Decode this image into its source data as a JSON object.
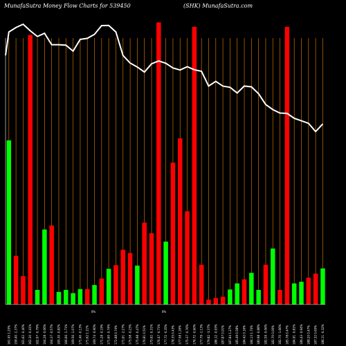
{
  "header": {
    "left": "MunafaSutra  Money Flow  Charts for 539450",
    "right": "(SHK)  MunafaSutra.com"
  },
  "colors": {
    "background": "#000000",
    "up": "#00ff00",
    "down": "#ff0000",
    "guide": "#d07000",
    "price_line": "#ffffff"
  },
  "chart_data": {
    "type": "bar",
    "note_labels": [
      "0%",
      "0%"
    ],
    "categories": [
      "161.45 1.25%",
      "159.40 -1.37%",
      "161.62 -0.40%",
      "162.30 -0.41%",
      "162.97 -0.79%",
      "164.28 -0.06%",
      "164.37 -0.57%",
      "165.30 -0.82%",
      "166.66 -1.71%",
      "169.56 -1.07%",
      "171.40 -0.13%",
      "171.62 1.11%",
      "169.74 -0.90%",
      "171.28 -0.19%",
      "171.60 -0.74%",
      "172.88 0.74%",
      "171.61 -2.27%",
      "175.58 -0.23%",
      "175.98 -0.47%",
      "176.81 0.51%",
      "175.92 -0.31%",
      "176.47 -0.71%",
      "177.72 -0.35%",
      "178.35 0.43%",
      "177.58 1.26%",
      "175.37 -0.76%",
      "176.72 -0.60%",
      "177.79 -1.13%",
      "179.82 -3.37%",
      "186.12 -0.93%",
      "187.87 0.01%",
      "187.84 1.27%",
      "185.49 0.58%",
      "184.42 0.16%",
      "184.13 1.74%",
      "180.98 -0.88%",
      "182.59 -0.06%",
      "182.70 0.00%",
      "182.70 -1.66%",
      "185.78 0.47%",
      "184.91 -0.81%",
      "186.43 -0.94%",
      "188.20 0.47%",
      "187.32 0.65%",
      "186.11 -0.32%"
    ],
    "directions": [
      "up",
      "down",
      "down",
      "down",
      "up",
      "up",
      "down",
      "up",
      "up",
      "up",
      "up",
      "down",
      "up",
      "down",
      "up",
      "down",
      "down",
      "down",
      "up",
      "down",
      "down",
      "down",
      "up",
      "down",
      "down",
      "down",
      "down",
      "down",
      "down",
      "down",
      "down",
      "up",
      "up",
      "down",
      "up",
      "up",
      "down",
      "up",
      "down",
      "down",
      "up",
      "up",
      "down",
      "down",
      "up"
    ],
    "values": [
      40.5,
      12,
      7,
      66.5,
      3.6,
      18.5,
      19.5,
      3.1,
      3.6,
      2.8,
      3.8,
      3.8,
      4.8,
      6.4,
      8.8,
      9.7,
      13.5,
      12.7,
      9.6,
      20.2,
      17.6,
      69.6,
      15.5,
      35,
      41,
      23,
      68.5,
      9.8,
      1.2,
      1.6,
      1.9,
      3.7,
      5.2,
      6.2,
      7.8,
      3.6,
      9.8,
      13.8,
      3.6,
      68.5,
      5.2,
      5.6,
      6.6,
      7.6,
      8.9
    ],
    "price": [
      161.45,
      159.4,
      161.62,
      162.3,
      162.97,
      164.28,
      164.37,
      165.3,
      166.66,
      169.56,
      171.4,
      171.62,
      169.74,
      171.28,
      171.6,
      172.88,
      171.61,
      175.58,
      175.98,
      176.81,
      175.92,
      176.47,
      177.72,
      178.35,
      177.58,
      175.37,
      176.72,
      177.79,
      179.82,
      186.12,
      187.87,
      187.84,
      185.49,
      184.42,
      184.13,
      180.98,
      182.59,
      182.7,
      182.7,
      185.78,
      184.91,
      186.43,
      188.2,
      187.32,
      186.11
    ],
    "grid": true
  }
}
